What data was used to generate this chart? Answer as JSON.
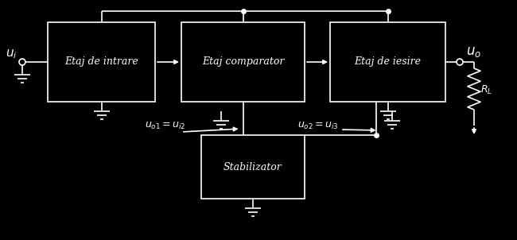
{
  "bg_color": "#000000",
  "fg_color": "#ffffff",
  "box1_label": "Etaj de intrare",
  "box2_label": "Etaj comparator",
  "box3_label": "Etaj de iesire",
  "box4_label": "Stabilizator",
  "ui_label": "$u_i$",
  "uo_label": "$u_o$",
  "uo1_label": "$u_{o1} = u_{i2}$",
  "uo2_label": "$u_{o2} = u_{i3}$",
  "RL_label": "$R_L$"
}
